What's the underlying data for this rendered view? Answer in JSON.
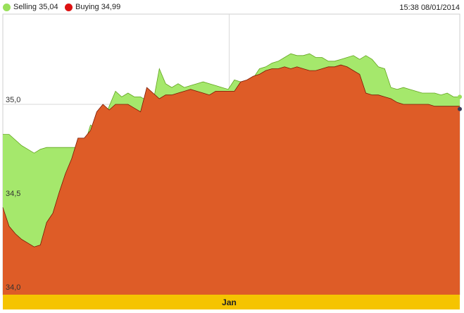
{
  "legend": {
    "selling": {
      "label": "Selling 35,04",
      "color": "#99e05a"
    },
    "buying": {
      "label": "Buying 34,99",
      "color": "#dd1111"
    }
  },
  "timestamp": "15:38 08/01/2014",
  "colors": {
    "selling_fill": "#a5e86c",
    "selling_line": "#62a51e",
    "buying_fill": "#de5c27",
    "buying_line": "#7a1a05",
    "band": "#f5c400",
    "grid": "#d9d9d9"
  },
  "chart_data": {
    "type": "area",
    "ylim": [
      34.0,
      35.5
    ],
    "yticks": [
      {
        "value": 34.0,
        "label": "34,0"
      },
      {
        "value": 34.5,
        "label": "34,5"
      },
      {
        "value": 35.0,
        "label": "35,0"
      }
    ],
    "category_label": "Jan",
    "grid": true,
    "legend_position": "top-left",
    "series": [
      {
        "name": "Selling",
        "values": [
          34.84,
          34.84,
          34.81,
          34.78,
          34.76,
          34.74,
          34.76,
          34.77,
          34.77,
          34.77,
          34.77,
          34.77,
          34.77,
          34.78,
          34.89,
          34.87,
          34.9,
          34.99,
          35.07,
          35.04,
          35.06,
          35.04,
          35.04,
          35.02,
          35.01,
          35.19,
          35.11,
          35.09,
          35.11,
          35.09,
          35.1,
          35.11,
          35.12,
          35.11,
          35.1,
          35.09,
          35.08,
          35.13,
          35.12,
          35.12,
          35.14,
          35.19,
          35.2,
          35.22,
          35.23,
          35.25,
          35.27,
          35.26,
          35.26,
          35.27,
          35.25,
          35.25,
          35.23,
          35.23,
          35.24,
          35.25,
          35.26,
          35.24,
          35.26,
          35.24,
          35.2,
          35.19,
          35.09,
          35.08,
          35.09,
          35.08,
          35.07,
          35.06,
          35.06,
          35.06,
          35.05,
          35.06,
          35.04,
          35.04
        ]
      },
      {
        "name": "Buying",
        "values": [
          34.45,
          34.35,
          34.31,
          34.28,
          34.26,
          34.24,
          34.25,
          34.37,
          34.42,
          34.53,
          34.63,
          34.71,
          34.82,
          34.82,
          34.86,
          34.96,
          35.0,
          34.97,
          35.0,
          35.0,
          35.0,
          34.98,
          34.96,
          35.09,
          35.06,
          35.03,
          35.05,
          35.05,
          35.06,
          35.07,
          35.08,
          35.07,
          35.06,
          35.05,
          35.07,
          35.07,
          35.07,
          35.07,
          35.12,
          35.13,
          35.15,
          35.16,
          35.18,
          35.19,
          35.19,
          35.2,
          35.19,
          35.2,
          35.19,
          35.18,
          35.18,
          35.19,
          35.2,
          35.2,
          35.21,
          35.2,
          35.18,
          35.16,
          35.06,
          35.05,
          35.05,
          35.04,
          35.03,
          35.01,
          35.0,
          35.0,
          35.0,
          35.0,
          35.0,
          34.99,
          34.99,
          34.99,
          34.99,
          34.99
        ]
      }
    ]
  }
}
